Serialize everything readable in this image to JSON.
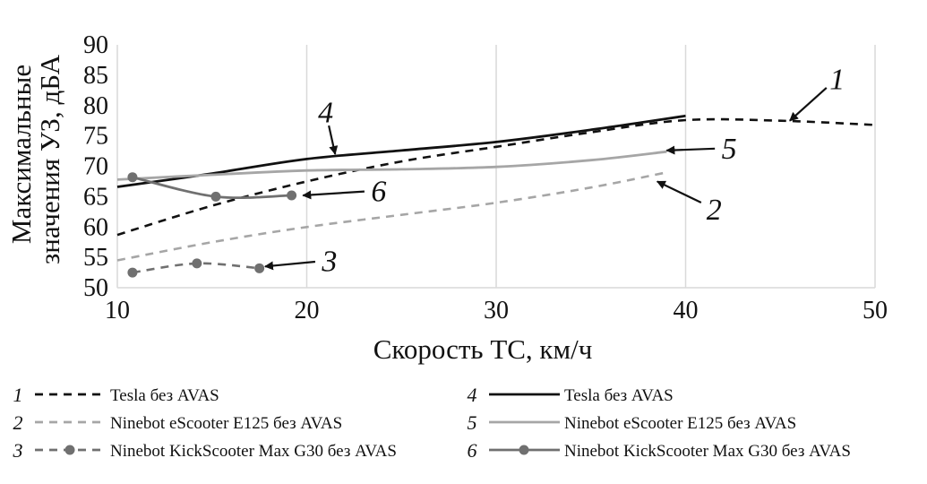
{
  "chart_data": {
    "type": "line",
    "xlabel": "Скорость ТС, км/ч",
    "ylabel_lines": [
      "Максимальные",
      "значения УЗ, дБА"
    ],
    "xlim": [
      10,
      50
    ],
    "ylim": [
      50,
      90
    ],
    "xticks": [
      "10",
      "20",
      "30",
      "40",
      "50"
    ],
    "yticks": [
      "50",
      "55",
      "60",
      "65",
      "70",
      "75",
      "80",
      "85",
      "90"
    ],
    "grid": "vertical",
    "legend_position": "bottom",
    "colors": {
      "black": "#111111",
      "light_gray": "#a6a6a6",
      "mid_gray": "#707070",
      "grid": "#d9d9d9"
    },
    "series": [
      {
        "name": "Tesla без AVAS",
        "number": "1",
        "style": "dashed",
        "color": "#111111",
        "marker": false,
        "x": [
          10,
          15,
          20,
          25,
          30,
          35,
          40,
          45,
          50
        ],
        "y": [
          58.7,
          63.5,
          67.5,
          70.8,
          73.2,
          75.6,
          77.6,
          77.5,
          76.8
        ]
      },
      {
        "name": "Ninebot eScooter E125 без AVAS",
        "number": "2",
        "style": "dashed",
        "color": "#a6a6a6",
        "marker": false,
        "x": [
          10,
          15,
          20,
          25,
          30,
          35,
          39
        ],
        "y": [
          54.5,
          57.5,
          60.0,
          62.0,
          64.0,
          66.5,
          69.0
        ]
      },
      {
        "name": "Ninebot KickScooter Max G30 без AVAS",
        "number": "3",
        "style": "dashed",
        "color": "#707070",
        "marker": true,
        "x": [
          10.8,
          14.2,
          17.5
        ],
        "y": [
          52.5,
          54.0,
          53.2
        ]
      },
      {
        "name": "Tesla без AVAS",
        "number": "4",
        "style": "solid",
        "color": "#111111",
        "marker": false,
        "x": [
          10,
          15,
          20,
          25,
          30,
          35,
          40
        ],
        "y": [
          66.6,
          68.8,
          71.2,
          72.6,
          74.0,
          76.0,
          78.3
        ]
      },
      {
        "name": "Ninebot eScooter E125 без AVAS",
        "number": "5",
        "style": "solid",
        "color": "#a6a6a6",
        "marker": false,
        "x": [
          10,
          15,
          20,
          25,
          30,
          35,
          39
        ],
        "y": [
          67.8,
          68.6,
          69.3,
          69.5,
          69.9,
          71.0,
          72.4
        ]
      },
      {
        "name": "Ninebot KickScooter Max G30 без AVAS",
        "number": "6",
        "style": "solid",
        "color": "#707070",
        "marker": true,
        "x": [
          10.8,
          15.2,
          19.2
        ],
        "y": [
          68.2,
          65.0,
          65.2
        ]
      }
    ],
    "annotations": [
      {
        "label": "1",
        "point": [
          45.5,
          77.5
        ],
        "text_at": [
          48.0,
          84.5
        ]
      },
      {
        "label": "2",
        "point": [
          38.5,
          67.5
        ],
        "text_at": [
          41.5,
          63.0
        ]
      },
      {
        "label": "3",
        "point": [
          17.8,
          53.5
        ],
        "text_at": [
          21.2,
          54.5
        ]
      },
      {
        "label": "4",
        "point": [
          21.5,
          72.0
        ],
        "text_at": [
          21.0,
          79.0
        ]
      },
      {
        "label": "5",
        "point": [
          39.0,
          72.6
        ],
        "text_at": [
          42.3,
          73.0
        ]
      },
      {
        "label": "6",
        "point": [
          19.8,
          65.2
        ],
        "text_at": [
          23.8,
          66.0
        ]
      }
    ]
  }
}
